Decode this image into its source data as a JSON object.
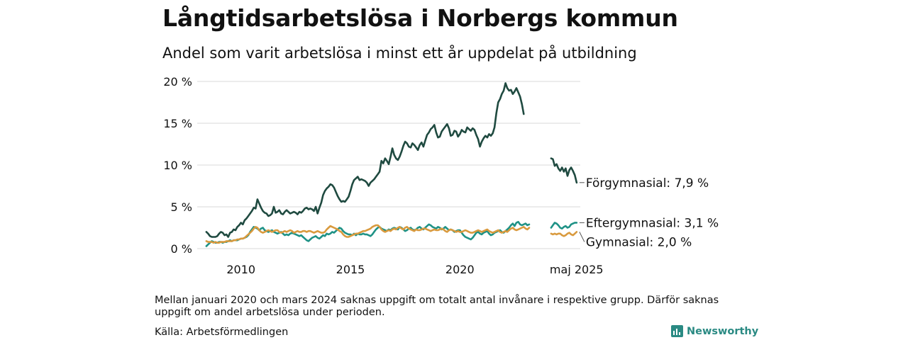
{
  "header": {
    "title": "Långtidsarbetslösa i Norbergs kommun",
    "subtitle": "Andel som varit arbetslösa i minst ett år uppdelat på utbildning"
  },
  "footer": {
    "note": "Mellan januari 2020 och mars 2024 saknas uppgift om totalt antal invånare i respektive grupp. Därför saknas uppgift om andel arbetslösa under perioden.",
    "source": "Källa: Arbetsförmedlingen",
    "brand": "Newsworthy"
  },
  "colors": {
    "forgymnasial": "#1f4a40",
    "eftergymnasial": "#1f9286",
    "gymnasial": "#d99a3e",
    "grid": "#d9d9d9",
    "brand": "#2a8a83"
  },
  "chart_data": {
    "type": "line",
    "y_unit": "%",
    "ylim": [
      0,
      20
    ],
    "y_ticks": [
      "0 %",
      "5 %",
      "10 %",
      "15 %",
      "20 %"
    ],
    "x_ticks": [
      "2010",
      "2015",
      "2020",
      "maj 2025"
    ],
    "grid": true,
    "legend": "end-labels",
    "series": [
      {
        "name": "Förgymnasial",
        "end_label": "Förgymnasial: 7,9 %",
        "color": "#1f4a40",
        "segments": [
          {
            "start": "2008-06",
            "values": [
              2.0,
              1.8,
              1.5,
              1.4,
              1.4,
              1.4,
              1.5,
              1.8,
              2.0,
              1.9,
              1.6,
              1.7,
              1.4,
              1.9,
              2.0,
              2.3,
              2.2,
              2.6,
              2.8,
              3.1,
              2.9,
              3.4,
              3.6,
              3.9,
              4.2,
              4.5,
              4.9,
              4.8,
              5.9,
              5.4,
              4.9,
              4.5,
              4.3,
              4.2,
              3.9,
              4.0,
              4.2,
              5.0,
              4.3,
              4.4,
              4.6,
              4.2,
              4.1,
              4.4,
              4.6,
              4.4,
              4.2,
              4.3,
              4.4,
              4.3,
              4.1,
              4.4,
              4.3,
              4.5,
              4.8,
              4.9,
              4.7,
              4.8,
              4.7,
              4.5,
              5.0,
              4.2,
              4.9,
              5.5,
              6.4,
              6.9,
              7.2,
              7.4,
              7.7,
              7.6,
              7.3,
              6.8,
              6.3,
              5.9,
              5.6,
              5.7,
              5.6,
              5.9,
              6.2,
              6.9,
              7.7,
              8.2,
              8.4,
              8.6,
              8.2,
              8.3,
              8.2,
              8.1,
              7.9,
              7.5,
              7.9,
              8.1,
              8.3,
              8.6,
              8.9,
              9.2,
              10.5,
              10.2,
              10.8,
              10.5,
              10.1,
              11.0,
              12.0,
              11.2,
              10.8,
              10.6,
              11.0,
              11.6,
              12.3,
              12.8,
              12.6,
              12.2,
              12.1,
              12.6,
              12.4,
              12.1,
              11.8,
              12.4,
              12.7,
              12.2,
              12.9,
              13.6,
              13.9,
              14.3,
              14.5,
              14.8,
              13.9,
              13.3,
              13.4,
              14.0,
              14.3,
              14.6,
              14.9,
              14.4,
              13.5,
              13.6,
              14.1,
              14.0,
              13.4,
              13.7,
              14.2,
              14.0,
              13.9,
              14.5,
              14.3,
              14.1,
              14.4,
              14.2,
              13.6,
              13.1,
              12.2,
              12.8,
              13.2,
              13.5,
              13.3,
              13.7,
              13.5,
              13.8,
              14.5,
              16.2,
              17.5,
              17.9,
              18.5,
              18.9,
              19.8,
              19.2,
              18.9,
              19.0,
              18.5,
              18.8,
              19.2,
              18.7,
              18.2,
              17.3,
              16.1
            ]
          },
          {
            "start": "2024-03",
            "values": [
              10.8,
              10.7,
              9.9,
              10.1,
              9.6,
              9.3,
              9.7,
              9.2,
              9.6,
              8.7,
              9.4,
              9.7,
              9.3,
              8.8,
              7.9
            ]
          }
        ]
      },
      {
        "name": "Eftergymnasial",
        "end_label": "Eftergymnasial: 3,1 %",
        "color": "#1f9286",
        "segments": [
          {
            "start": "2008-06",
            "values": [
              0.3,
              0.5,
              0.7,
              0.9,
              0.8,
              0.7,
              0.7,
              0.8,
              0.8,
              0.7,
              0.8,
              0.8,
              0.9,
              1.0,
              0.9,
              1.0,
              1.0,
              1.0,
              1.1,
              1.2,
              1.2,
              1.3,
              1.4,
              1.6,
              2.0,
              2.3,
              2.6,
              2.5,
              2.4,
              2.2,
              2.4,
              2.5,
              2.2,
              2.1,
              2.0,
              2.1,
              2.2,
              2.0,
              1.9,
              1.8,
              1.9,
              2.0,
              1.8,
              1.6,
              1.7,
              1.6,
              1.8,
              1.9,
              1.8,
              1.7,
              1.6,
              1.5,
              1.6,
              1.4,
              1.2,
              1.0,
              0.9,
              1.1,
              1.3,
              1.4,
              1.5,
              1.3,
              1.2,
              1.4,
              1.6,
              1.5,
              1.8,
              1.7,
              1.8,
              2.0,
              1.9,
              2.1,
              2.3,
              2.5,
              2.4,
              2.1,
              1.9,
              1.8,
              1.7,
              1.7,
              1.6,
              1.8,
              1.6,
              1.8,
              1.7,
              1.7,
              1.8,
              1.7,
              1.7,
              1.6,
              1.5,
              1.7,
              2.0,
              2.3,
              2.5,
              2.6,
              2.4,
              2.3,
              2.2,
              2.1,
              2.3,
              2.2,
              2.4,
              2.5,
              2.4,
              2.3,
              2.6,
              2.5,
              2.3,
              2.1,
              2.2,
              2.4,
              2.5,
              2.3,
              2.2,
              2.3,
              2.5,
              2.6,
              2.4,
              2.3,
              2.5,
              2.7,
              2.9,
              2.8,
              2.6,
              2.5,
              2.4,
              2.6,
              2.5,
              2.3,
              2.4,
              2.6,
              2.4,
              2.2,
              2.3,
              2.2,
              2.0,
              2.1,
              2.2,
              2.2,
              1.9,
              1.6,
              1.4,
              1.3,
              1.2,
              1.1,
              1.3,
              1.6,
              1.9,
              2.0,
              1.8,
              1.7,
              1.9,
              2.0,
              2.1,
              1.8,
              1.6,
              1.7,
              1.9,
              2.0,
              2.1,
              2.2,
              2.0,
              1.9,
              2.1,
              2.3,
              2.5,
              2.8,
              3.0,
              2.7,
              3.1,
              3.2,
              2.9,
              2.8,
              2.9,
              3.0,
              2.8,
              2.9
            ]
          },
          {
            "start": "2024-03",
            "values": [
              2.5,
              2.8,
              3.1,
              3.0,
              2.8,
              2.5,
              2.4,
              2.6,
              2.7,
              2.5,
              2.6,
              2.9,
              3.0,
              3.1,
              3.1
            ]
          }
        ]
      },
      {
        "name": "Gymnasial",
        "end_label": "Gymnasial: 2,0 %",
        "color": "#d99a3e",
        "segments": [
          {
            "start": "2008-06",
            "values": [
              0.9,
              0.8,
              0.8,
              0.8,
              0.7,
              0.8,
              0.7,
              0.7,
              0.8,
              0.8,
              0.8,
              0.9,
              0.9,
              0.9,
              0.9,
              1.0,
              1.0,
              1.1,
              1.1,
              1.2,
              1.2,
              1.3,
              1.5,
              1.7,
              1.9,
              2.1,
              2.4,
              2.6,
              2.5,
              2.2,
              2.0,
              1.9,
              2.0,
              2.1,
              2.2,
              2.1,
              2.0,
              2.1,
              2.2,
              2.2,
              2.0,
              1.9,
              2.0,
              2.1,
              2.0,
              2.1,
              2.2,
              2.1,
              1.9,
              2.0,
              2.1,
              2.0,
              2.0,
              2.1,
              2.1,
              2.0,
              2.1,
              2.1,
              2.0,
              1.9,
              2.0,
              2.1,
              2.0,
              1.9,
              1.9,
              2.0,
              2.3,
              2.5,
              2.7,
              2.6,
              2.5,
              2.4,
              2.3,
              2.1,
              2.0,
              1.7,
              1.5,
              1.4,
              1.4,
              1.5,
              1.6,
              1.7,
              1.8,
              1.8,
              1.9,
              2.0,
              2.1,
              2.1,
              2.2,
              2.3,
              2.4,
              2.6,
              2.7,
              2.8,
              2.8,
              2.6,
              2.3,
              2.1,
              2.0,
              2.1,
              2.2,
              2.1,
              2.3,
              2.4,
              2.3,
              2.5,
              2.6,
              2.4,
              2.3,
              2.5,
              2.6,
              2.4,
              2.3,
              2.2,
              2.1,
              2.3,
              2.2,
              2.2,
              2.3,
              2.4,
              2.4,
              2.3,
              2.2,
              2.1,
              2.2,
              2.3,
              2.2,
              2.2,
              2.3,
              2.4,
              2.3,
              2.1,
              2.0,
              2.2,
              2.3,
              2.2,
              2.1,
              2.0,
              2.1,
              2.0,
              2.0,
              2.1,
              2.2,
              2.1,
              2.0,
              1.9,
              1.9,
              2.0,
              2.1,
              2.2,
              2.1,
              2.0,
              2.1,
              2.2,
              2.3,
              2.1,
              2.0,
              1.9,
              2.0,
              2.1,
              2.2,
              2.0,
              1.9,
              2.0,
              2.1,
              2.0,
              2.2,
              2.4,
              2.5,
              2.3,
              2.2,
              2.3,
              2.4,
              2.5,
              2.6,
              2.4,
              2.3,
              2.5
            ]
          },
          {
            "start": "2024-03",
            "values": [
              1.8,
              1.7,
              1.8,
              1.7,
              1.8,
              1.8,
              1.6,
              1.5,
              1.6,
              1.8,
              1.9,
              1.7,
              1.6,
              1.8,
              2.0
            ]
          }
        ]
      }
    ]
  }
}
